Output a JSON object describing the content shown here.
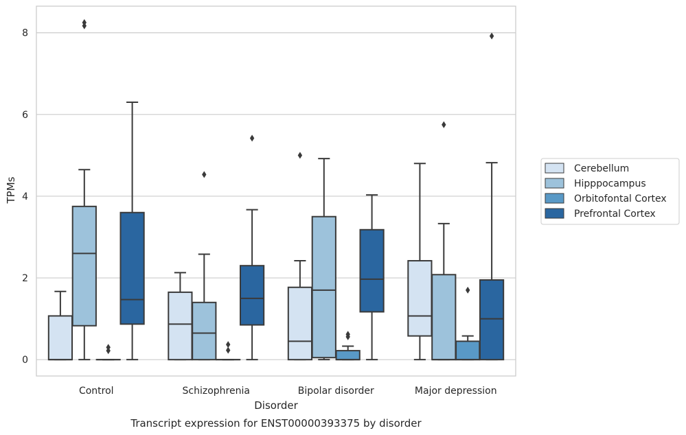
{
  "chart_data": {
    "type": "box",
    "title": "",
    "caption": "Transcript expression for ENST00000393375 by disorder",
    "xlabel": "Disorder",
    "ylabel": "TPMs",
    "ylim": [
      -0.4,
      8.65
    ],
    "yticks": [
      0,
      2,
      4,
      6,
      8
    ],
    "grid": "horizontal",
    "legend_position": "right",
    "categories": [
      "Control",
      "Schizophrenia",
      "Bipolar disorder",
      "Major depression"
    ],
    "series": [
      {
        "name": "Cerebellum",
        "color": "#d4e3f2",
        "boxes": [
          {
            "whislo": 0,
            "q1": 0,
            "med": 0,
            "q3": 1.07,
            "whishi": 1.67,
            "fliers": []
          },
          {
            "whislo": 0,
            "q1": 0,
            "med": 0.87,
            "q3": 1.65,
            "whishi": 2.13,
            "fliers": []
          },
          {
            "whislo": 0,
            "q1": 0,
            "med": 0.45,
            "q3": 1.77,
            "whishi": 2.42,
            "fliers": [
              5.0
            ]
          },
          {
            "whislo": 0,
            "q1": 0.58,
            "med": 1.07,
            "q3": 2.42,
            "whishi": 4.8,
            "fliers": []
          }
        ]
      },
      {
        "name": "Hipppocampus",
        "color": "#9dc2db",
        "boxes": [
          {
            "whislo": 0,
            "q1": 0.83,
            "med": 2.6,
            "q3": 3.75,
            "whishi": 4.65,
            "fliers": [
              8.17,
              8.25
            ]
          },
          {
            "whislo": 0,
            "q1": 0,
            "med": 0.65,
            "q3": 1.4,
            "whishi": 2.58,
            "fliers": [
              4.53
            ]
          },
          {
            "whislo": 0,
            "q1": 0.05,
            "med": 1.7,
            "q3": 3.5,
            "whishi": 4.92,
            "fliers": []
          },
          {
            "whislo": 0,
            "q1": 0,
            "med": 0,
            "q3": 2.08,
            "whishi": 3.33,
            "fliers": [
              5.75
            ]
          }
        ]
      },
      {
        "name": "Orbitofontal Cortex",
        "color": "#5999c6",
        "boxes": [
          {
            "whislo": 0,
            "q1": 0,
            "med": 0,
            "q3": 0,
            "whishi": 0,
            "fliers": [
              0.22,
              0.3
            ]
          },
          {
            "whislo": 0,
            "q1": 0,
            "med": 0,
            "q3": 0,
            "whishi": 0,
            "fliers": [
              0.23,
              0.37
            ]
          },
          {
            "whislo": 0,
            "q1": 0,
            "med": 0,
            "q3": 0.22,
            "whishi": 0.33,
            "fliers": [
              0.56,
              0.62
            ]
          },
          {
            "whislo": 0,
            "q1": 0,
            "med": 0,
            "q3": 0.45,
            "whishi": 0.58,
            "fliers": [
              1.7
            ]
          }
        ]
      },
      {
        "name": "Prefrontal Cortex",
        "color": "#2a66a0",
        "boxes": [
          {
            "whislo": 0,
            "q1": 0.87,
            "med": 1.47,
            "q3": 3.6,
            "whishi": 6.3,
            "fliers": []
          },
          {
            "whislo": 0,
            "q1": 0.85,
            "med": 1.5,
            "q3": 2.3,
            "whishi": 3.67,
            "fliers": [
              5.42
            ]
          },
          {
            "whislo": 0,
            "q1": 1.17,
            "med": 1.97,
            "q3": 3.18,
            "whishi": 4.03,
            "fliers": []
          },
          {
            "whislo": 0,
            "q1": 0,
            "med": 1.0,
            "q3": 1.95,
            "whishi": 4.82,
            "fliers": [
              7.92
            ]
          }
        ]
      }
    ]
  }
}
